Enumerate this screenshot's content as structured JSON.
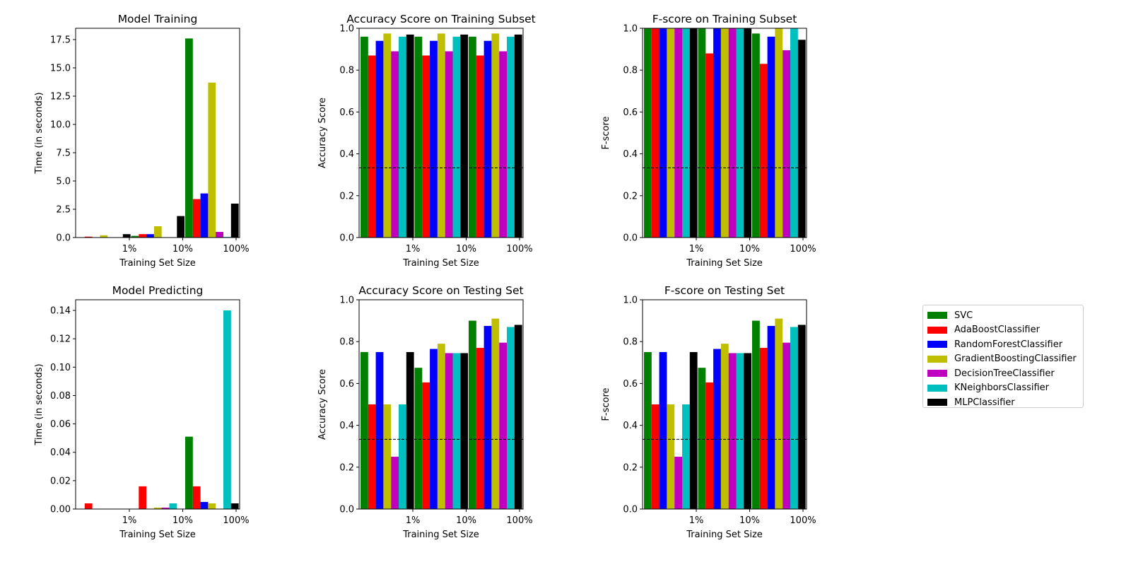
{
  "legend": {
    "placement": "right",
    "entries": [
      {
        "name": "SVC",
        "color": "#008000"
      },
      {
        "name": "AdaBoostClassifier",
        "color": "#ff0000"
      },
      {
        "name": "RandomForestClassifier",
        "color": "#0000ff"
      },
      {
        "name": "GradientBoostingClassifier",
        "color": "#bfbf00"
      },
      {
        "name": "DecisionTreeClassifier",
        "color": "#bf00bf"
      },
      {
        "name": "KNeighborsClassifier",
        "color": "#00bfbf"
      },
      {
        "name": "MLPClassifier",
        "color": "#000000"
      }
    ]
  },
  "chart_data": [
    {
      "type": "bar",
      "title": "Model Training",
      "xlabel": "Training Set Size",
      "ylabel": "Time (in seconds)",
      "categories": [
        "1%",
        "10%",
        "100%"
      ],
      "ylim": [
        0,
        18.5
      ],
      "yticks": [
        "0.0",
        "2.5",
        "5.0",
        "7.5",
        "10.0",
        "12.5",
        "15.0",
        "17.5"
      ],
      "dashed_line": null,
      "series": [
        {
          "name": "SVC",
          "values": [
            0.02,
            0.15,
            17.6
          ]
        },
        {
          "name": "AdaBoostClassifier",
          "values": [
            0.08,
            0.3,
            3.4
          ]
        },
        {
          "name": "RandomForestClassifier",
          "values": [
            0.03,
            0.3,
            3.9
          ]
        },
        {
          "name": "GradientBoostingClassifier",
          "values": [
            0.2,
            1.0,
            13.7
          ]
        },
        {
          "name": "DecisionTreeClassifier",
          "values": [
            0.01,
            0.02,
            0.5
          ]
        },
        {
          "name": "KNeighborsClassifier",
          "values": [
            0.01,
            0.02,
            0.05
          ]
        },
        {
          "name": "MLPClassifier",
          "values": [
            0.3,
            1.9,
            3.0
          ]
        }
      ]
    },
    {
      "type": "bar",
      "title": "Accuracy Score on Training Subset",
      "xlabel": "Training Set Size",
      "ylabel": "Accuracy Score",
      "categories": [
        "1%",
        "10%",
        "100%"
      ],
      "ylim": [
        0,
        1
      ],
      "yticks": [
        "0.0",
        "0.2",
        "0.4",
        "0.6",
        "0.8",
        "1.0"
      ],
      "dashed_line": 0.333,
      "series": [
        {
          "name": "SVC",
          "values": [
            0.96,
            0.96,
            0.96
          ]
        },
        {
          "name": "AdaBoostClassifier",
          "values": [
            0.87,
            0.87,
            0.87
          ]
        },
        {
          "name": "RandomForestClassifier",
          "values": [
            0.94,
            0.94,
            0.94
          ]
        },
        {
          "name": "GradientBoostingClassifier",
          "values": [
            0.975,
            0.975,
            0.975
          ]
        },
        {
          "name": "DecisionTreeClassifier",
          "values": [
            0.89,
            0.89,
            0.89
          ]
        },
        {
          "name": "KNeighborsClassifier",
          "values": [
            0.96,
            0.96,
            0.96
          ]
        },
        {
          "name": "MLPClassifier",
          "values": [
            0.97,
            0.97,
            0.97
          ]
        }
      ]
    },
    {
      "type": "bar",
      "title": "F-score on Training Subset",
      "xlabel": "Training Set Size",
      "ylabel": "F-score",
      "categories": [
        "1%",
        "10%",
        "100%"
      ],
      "ylim": [
        0,
        1
      ],
      "yticks": [
        "0.0",
        "0.2",
        "0.4",
        "0.6",
        "0.8",
        "1.0"
      ],
      "dashed_line": 0.333,
      "series": [
        {
          "name": "SVC",
          "values": [
            1.0,
            1.0,
            0.975
          ]
        },
        {
          "name": "AdaBoostClassifier",
          "values": [
            1.0,
            0.88,
            0.83
          ]
        },
        {
          "name": "RandomForestClassifier",
          "values": [
            1.0,
            1.0,
            0.96
          ]
        },
        {
          "name": "GradientBoostingClassifier",
          "values": [
            1.0,
            1.0,
            1.0
          ]
        },
        {
          "name": "DecisionTreeClassifier",
          "values": [
            1.0,
            1.0,
            0.895
          ]
        },
        {
          "name": "KNeighborsClassifier",
          "values": [
            1.0,
            1.0,
            1.0
          ]
        },
        {
          "name": "MLPClassifier",
          "values": [
            1.0,
            1.0,
            0.945
          ]
        }
      ]
    },
    {
      "type": "bar",
      "title": "Model Predicting",
      "xlabel": "Training Set Size",
      "ylabel": "Time (in seconds)",
      "categories": [
        "1%",
        "10%",
        "100%"
      ],
      "ylim": [
        0,
        0.1475
      ],
      "yticks": [
        "0.00",
        "0.02",
        "0.04",
        "0.06",
        "0.08",
        "0.10",
        "0.12",
        "0.14"
      ],
      "dashed_line": null,
      "series": [
        {
          "name": "SVC",
          "values": [
            0.0,
            0.0,
            0.051
          ]
        },
        {
          "name": "AdaBoostClassifier",
          "values": [
            0.004,
            0.016,
            0.016
          ]
        },
        {
          "name": "RandomForestClassifier",
          "values": [
            0.0,
            0.0,
            0.005
          ]
        },
        {
          "name": "GradientBoostingClassifier",
          "values": [
            0.0,
            0.001,
            0.004
          ]
        },
        {
          "name": "DecisionTreeClassifier",
          "values": [
            0.0,
            0.001,
            0.0
          ]
        },
        {
          "name": "KNeighborsClassifier",
          "values": [
            0.0,
            0.004,
            0.14
          ]
        },
        {
          "name": "MLPClassifier",
          "values": [
            0.0,
            0.0,
            0.004
          ]
        }
      ]
    },
    {
      "type": "bar",
      "title": "Accuracy Score on Testing Set",
      "xlabel": "Training Set Size",
      "ylabel": "Accuracy Score",
      "categories": [
        "1%",
        "10%",
        "100%"
      ],
      "ylim": [
        0,
        1
      ],
      "yticks": [
        "0.0",
        "0.2",
        "0.4",
        "0.6",
        "0.8",
        "1.0"
      ],
      "dashed_line": 0.333,
      "series": [
        {
          "name": "SVC",
          "values": [
            0.75,
            0.675,
            0.9
          ]
        },
        {
          "name": "AdaBoostClassifier",
          "values": [
            0.5,
            0.605,
            0.77
          ]
        },
        {
          "name": "RandomForestClassifier",
          "values": [
            0.75,
            0.765,
            0.875
          ]
        },
        {
          "name": "GradientBoostingClassifier",
          "values": [
            0.5,
            0.79,
            0.91
          ]
        },
        {
          "name": "DecisionTreeClassifier",
          "values": [
            0.25,
            0.745,
            0.795
          ]
        },
        {
          "name": "KNeighborsClassifier",
          "values": [
            0.5,
            0.745,
            0.87
          ]
        },
        {
          "name": "MLPClassifier",
          "values": [
            0.75,
            0.745,
            0.88
          ]
        }
      ]
    },
    {
      "type": "bar",
      "title": "F-score on Testing Set",
      "xlabel": "Training Set Size",
      "ylabel": "F-score",
      "categories": [
        "1%",
        "10%",
        "100%"
      ],
      "ylim": [
        0,
        1
      ],
      "yticks": [
        "0.0",
        "0.2",
        "0.4",
        "0.6",
        "0.8",
        "1.0"
      ],
      "dashed_line": 0.333,
      "series": [
        {
          "name": "SVC",
          "values": [
            0.75,
            0.675,
            0.9
          ]
        },
        {
          "name": "AdaBoostClassifier",
          "values": [
            0.5,
            0.605,
            0.77
          ]
        },
        {
          "name": "RandomForestClassifier",
          "values": [
            0.75,
            0.765,
            0.875
          ]
        },
        {
          "name": "GradientBoostingClassifier",
          "values": [
            0.5,
            0.79,
            0.91
          ]
        },
        {
          "name": "DecisionTreeClassifier",
          "values": [
            0.25,
            0.745,
            0.795
          ]
        },
        {
          "name": "KNeighborsClassifier",
          "values": [
            0.5,
            0.745,
            0.87
          ]
        },
        {
          "name": "MLPClassifier",
          "values": [
            0.75,
            0.745,
            0.88
          ]
        }
      ]
    }
  ]
}
